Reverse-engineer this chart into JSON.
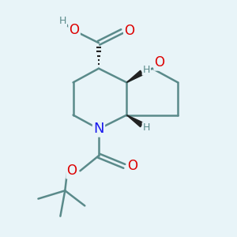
{
  "bg_color": "#e8f4f8",
  "bond_color": "#5a8a8a",
  "bond_width": 1.8,
  "atom_colors": {
    "O": "#dd0000",
    "N": "#1a1aee",
    "H": "#5a8a8a",
    "C": "#5a8a8a"
  },
  "font_size": 11,
  "font_size_H": 9
}
